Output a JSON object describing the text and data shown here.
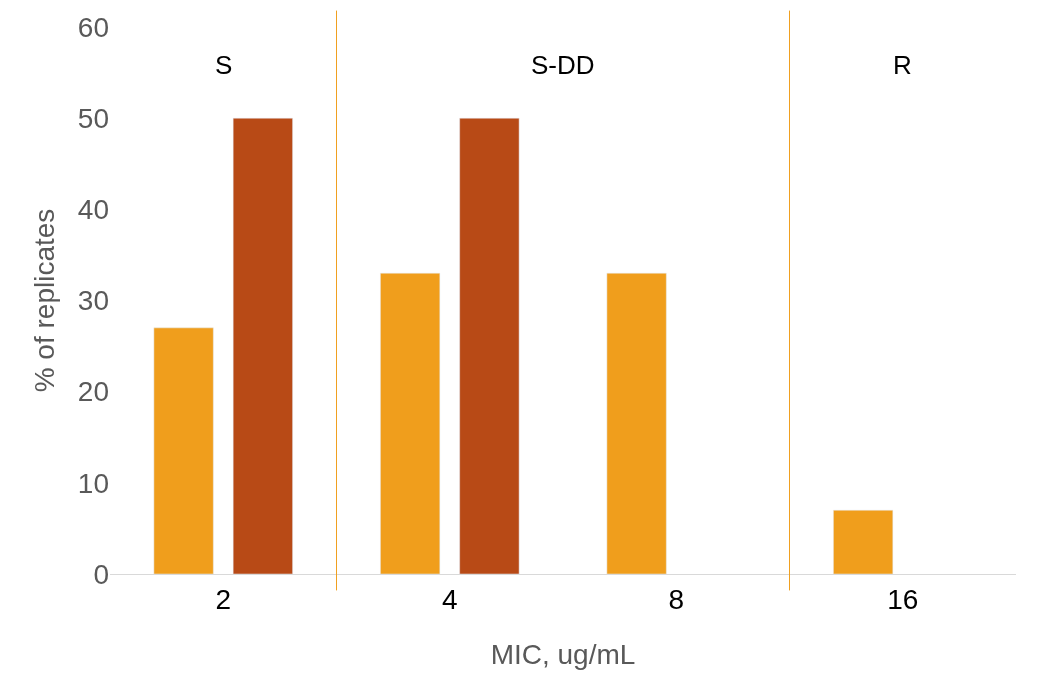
{
  "chart_data": {
    "type": "bar",
    "xlabel": "MIC, ug/mL",
    "ylabel": "% of replicates",
    "categories": [
      "2",
      "4",
      "8",
      "16"
    ],
    "series": [
      {
        "color": "#f09e1c",
        "values": [
          27,
          33,
          33,
          7
        ]
      },
      {
        "color": "#b84a16",
        "values": [
          50,
          50,
          null,
          null
        ]
      }
    ],
    "ylim": [
      0,
      60
    ],
    "yticks": [
      0,
      10,
      20,
      30,
      40,
      50,
      60
    ],
    "annotations": [
      "S",
      "S-DD",
      "R"
    ]
  }
}
